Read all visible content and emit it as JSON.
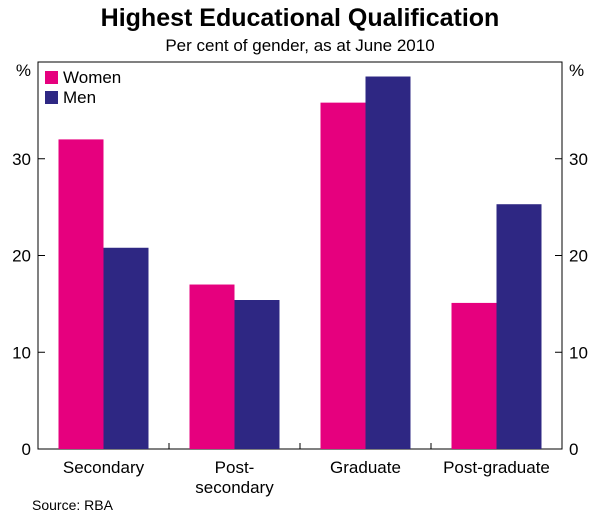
{
  "chart_data": {
    "type": "bar",
    "title": "Highest Educational Qualification",
    "subtitle": "Per cent of gender, as at June 2010",
    "categories": [
      [
        "Secondary"
      ],
      [
        "Post-",
        "secondary"
      ],
      [
        "Graduate"
      ],
      [
        "Post-graduate"
      ]
    ],
    "series": [
      {
        "name": "Women",
        "color": "#e6007e",
        "values": [
          32,
          17,
          35.8,
          15.1
        ]
      },
      {
        "name": "Men",
        "color": "#2e2783",
        "values": [
          20.8,
          15.4,
          38.5,
          25.3
        ]
      }
    ],
    "ylim": [
      0,
      40
    ],
    "yticks": [
      0,
      10,
      20,
      30
    ],
    "y_unit_label": "%",
    "legend_position": "top-left",
    "grid": false,
    "source": "Source: RBA"
  }
}
